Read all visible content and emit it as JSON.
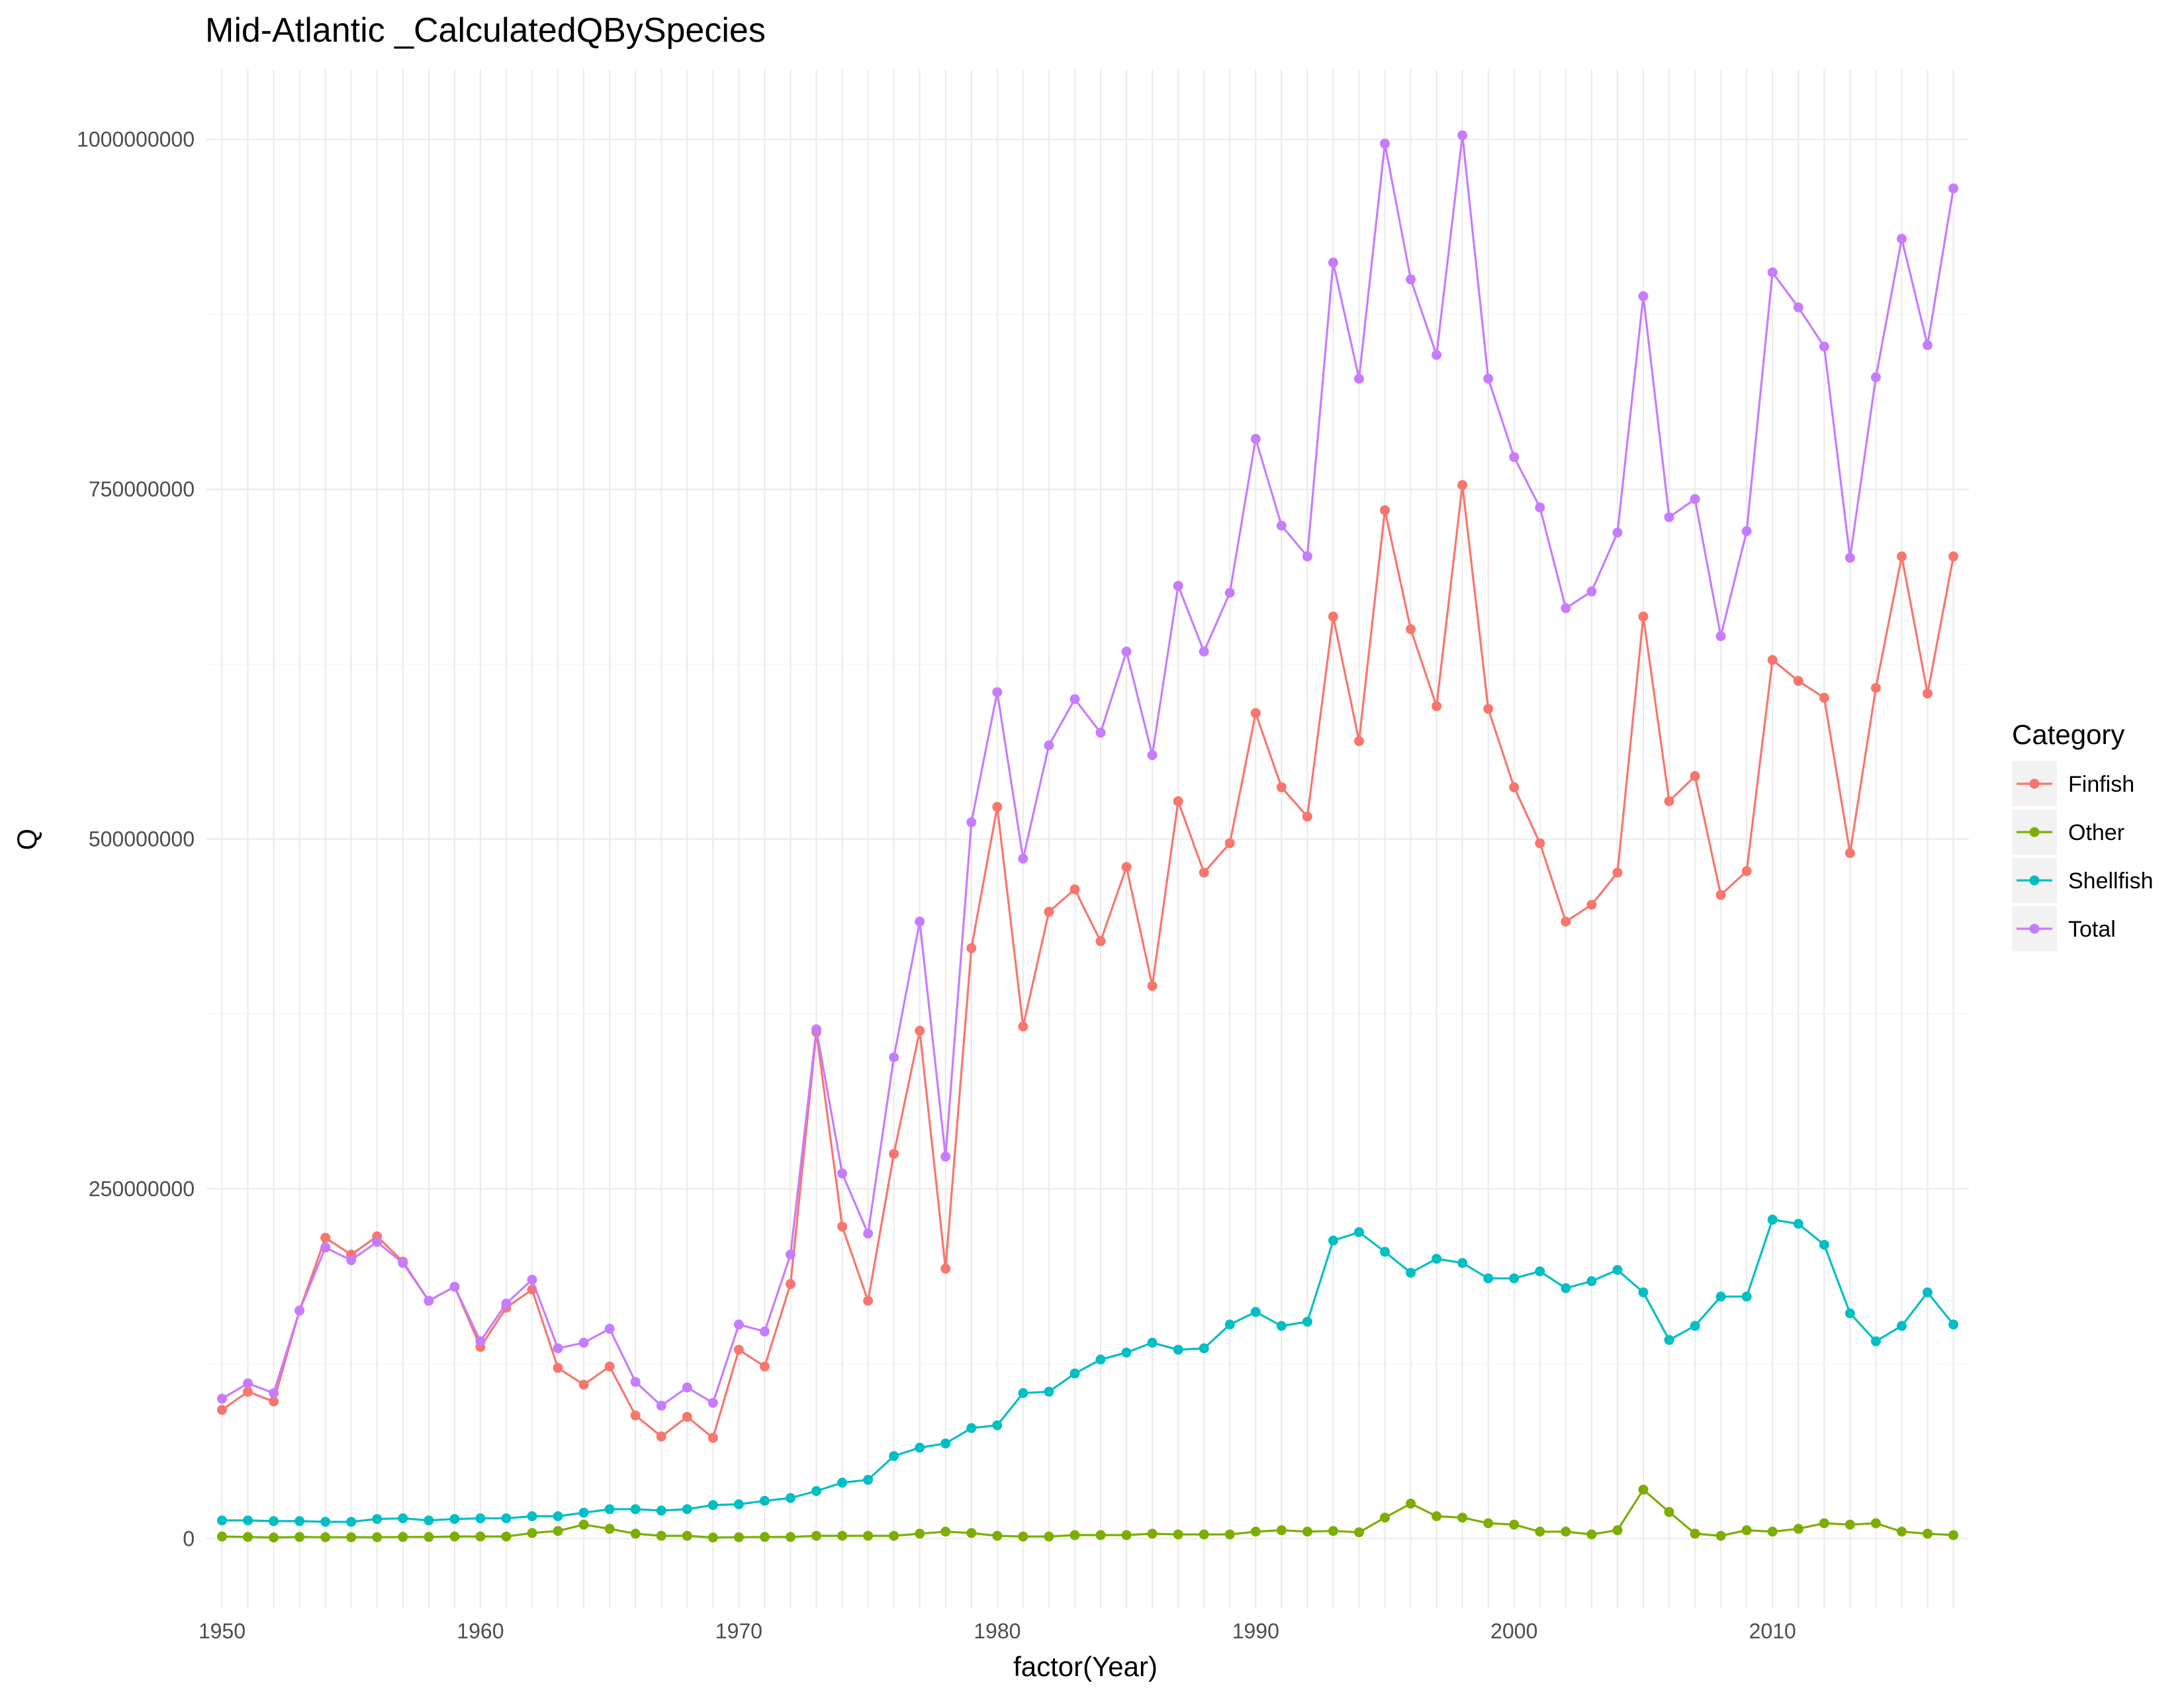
{
  "chart_data": {
    "type": "line",
    "title": "Mid-Atlantic _CalculatedQBySpecies",
    "xlabel": "factor(Year)",
    "ylabel": "Q",
    "x": [
      1950,
      1951,
      1952,
      1953,
      1954,
      1955,
      1956,
      1957,
      1958,
      1959,
      1960,
      1961,
      1962,
      1963,
      1964,
      1965,
      1966,
      1967,
      1968,
      1969,
      1970,
      1971,
      1972,
      1973,
      1974,
      1975,
      1976,
      1977,
      1978,
      1979,
      1980,
      1981,
      1982,
      1983,
      1984,
      1985,
      1986,
      1987,
      1988,
      1989,
      1990,
      1991,
      1992,
      1993,
      1994,
      1995,
      1996,
      1997,
      1998,
      1999,
      2000,
      2001,
      2002,
      2003,
      2004,
      2005,
      2006,
      2007,
      2008,
      2009,
      2010,
      2011,
      2012,
      2013,
      2014,
      2015,
      2016,
      2017
    ],
    "x_tick_labels": [
      "1950",
      "1960",
      "1970",
      "1980",
      "1990",
      "2000",
      "2010"
    ],
    "y_tick_labels": [
      "0",
      "250000000",
      "500000000",
      "750000000",
      "1000000000"
    ],
    "y_ticks": [
      0,
      250000000,
      500000000,
      750000000,
      1000000000
    ],
    "ylim": [
      -50000000,
      1050000000
    ],
    "grid": true,
    "legend": {
      "title": "Category",
      "position": "right"
    },
    "series": [
      {
        "name": "Finfish",
        "color": "#F8766D",
        "values": [
          92000000,
          105000000,
          98000000,
          163000000,
          215000000,
          203000000,
          216000000,
          198000000,
          170000000,
          180000000,
          137000000,
          165000000,
          178000000,
          122000000,
          110000000,
          123000000,
          88000000,
          73000000,
          87000000,
          72000000,
          135000000,
          123000000,
          182000000,
          362000000,
          223000000,
          170000000,
          275000000,
          363000000,
          193000000,
          422000000,
          523000000,
          366000000,
          448000000,
          464000000,
          427000000,
          480000000,
          395000000,
          527000000,
          476000000,
          497000000,
          590000000,
          537000000,
          516000000,
          659000000,
          570000000,
          735000000,
          650000000,
          595000000,
          753000000,
          593000000,
          537000000,
          497000000,
          441000000,
          453000000,
          476000000,
          659000000,
          527000000,
          545000000,
          460000000,
          477000000,
          628000000,
          613000000,
          601000000,
          490000000,
          608000000,
          702000000,
          604000000,
          702000000
        ]
      },
      {
        "name": "Other",
        "color": "#7CAE00",
        "values": [
          1500000,
          1200000,
          800000,
          1200000,
          1000000,
          1000000,
          1000000,
          1200000,
          1200000,
          1500000,
          1500000,
          1500000,
          4000000,
          5500000,
          10000000,
          7000000,
          3500000,
          2000000,
          2000000,
          800000,
          1000000,
          1200000,
          1200000,
          2000000,
          2000000,
          2000000,
          2000000,
          3500000,
          5000000,
          4000000,
          2000000,
          1500000,
          1500000,
          2500000,
          2500000,
          2500000,
          3500000,
          3000000,
          3000000,
          3000000,
          5000000,
          6000000,
          5000000,
          5500000,
          4500000,
          15000000,
          25000000,
          16000000,
          15000000,
          11000000,
          10000000,
          5000000,
          5000000,
          3000000,
          6000000,
          35000000,
          19000000,
          3500000,
          2000000,
          6000000,
          5000000,
          7000000,
          11000000,
          10000000,
          11000000,
          5000000,
          3500000,
          2500000
        ]
      },
      {
        "name": "Shellfish",
        "color": "#00BFC4",
        "values": [
          13000000,
          13000000,
          12500000,
          12500000,
          12000000,
          12000000,
          14000000,
          14500000,
          13000000,
          14000000,
          14500000,
          14500000,
          16000000,
          16000000,
          18500000,
          21000000,
          21000000,
          20000000,
          21000000,
          24000000,
          24500000,
          27000000,
          29000000,
          34000000,
          40000000,
          42000000,
          59000000,
          65000000,
          68000000,
          79000000,
          81000000,
          104000000,
          105000000,
          118000000,
          128000000,
          133000000,
          140000000,
          135000000,
          136000000,
          153000000,
          162000000,
          152000000,
          155000000,
          213000000,
          219000000,
          205000000,
          190000000,
          200000000,
          197000000,
          186000000,
          186000000,
          191000000,
          179000000,
          184000000,
          192000000,
          176000000,
          142000000,
          152000000,
          173000000,
          173000000,
          228000000,
          225000000,
          210000000,
          161000000,
          141000000,
          152000000,
          176000000,
          153000000
        ]
      },
      {
        "name": "Total",
        "color": "#C77CFF",
        "values": [
          100000000,
          111000000,
          104000000,
          163000000,
          208000000,
          199000000,
          212000000,
          197000000,
          170000000,
          180000000,
          141000000,
          168000000,
          185000000,
          136000000,
          140000000,
          150000000,
          112000000,
          95000000,
          108000000,
          97000000,
          153000000,
          148000000,
          203000000,
          364000000,
          261000000,
          218000000,
          344000000,
          441000000,
          273000000,
          512000000,
          605000000,
          486000000,
          567000000,
          600000000,
          576000000,
          634000000,
          560000000,
          681000000,
          634000000,
          676000000,
          786000000,
          724000000,
          702000000,
          912000000,
          829000000,
          997000000,
          900000000,
          846000000,
          1003000000,
          829000000,
          773000000,
          737000000,
          665000000,
          677000000,
          719000000,
          888000000,
          730000000,
          743000000,
          645000000,
          720000000,
          905000000,
          880000000,
          852000000,
          701000000,
          830000000,
          929000000,
          853000000,
          965000000
        ]
      }
    ]
  }
}
